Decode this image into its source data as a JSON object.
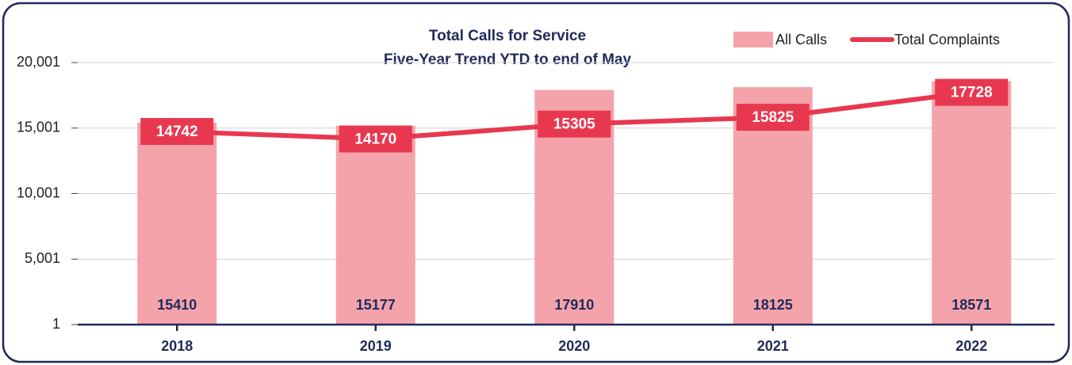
{
  "chart_data": {
    "type": "bar",
    "title": "Total Calls for Service",
    "subtitle": "Five-Year Trend YTD to end of May",
    "categories": [
      "2018",
      "2019",
      "2020",
      "2021",
      "2022"
    ],
    "series": [
      {
        "name": "All Calls",
        "type": "bar",
        "color": "#f4a3aa",
        "values": [
          15410,
          15177,
          17910,
          18125,
          18571
        ]
      },
      {
        "name": "Total Complaints",
        "type": "line",
        "color": "#e8384f",
        "values": [
          14742,
          14170,
          15305,
          15825,
          17728
        ]
      }
    ],
    "ylim": [
      1,
      20001
    ],
    "yticks": [
      1,
      {
        "value": 5001,
        "label": "5,001"
      },
      {
        "value": 10001,
        "label": "10,001"
      },
      {
        "value": 15001,
        "label": "15,001"
      },
      {
        "value": 20001,
        "label": "20,001"
      }
    ],
    "grid": true,
    "legend": "top-right"
  }
}
